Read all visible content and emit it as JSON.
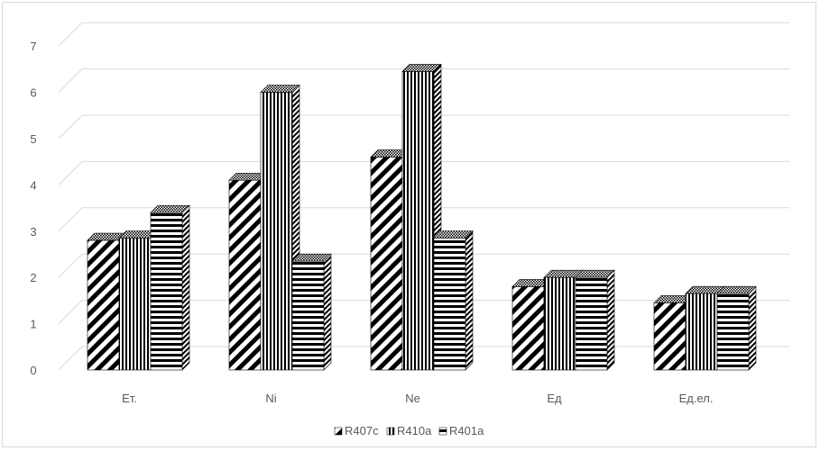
{
  "chart_data": {
    "type": "bar",
    "style": "3d-clustered-column",
    "categories": [
      "Ет.",
      "Ni",
      "Ne",
      "Ед",
      "Ед.ел."
    ],
    "series": [
      {
        "name": "R407c",
        "values": [
          2.8,
          4.1,
          4.6,
          1.8,
          1.45
        ],
        "pattern": "diagonal-stripes"
      },
      {
        "name": "R410a",
        "values": [
          2.85,
          6.0,
          6.45,
          2.0,
          1.65
        ],
        "pattern": "vertical-stripes"
      },
      {
        "name": "R401a",
        "values": [
          3.4,
          2.35,
          2.85,
          2.0,
          1.65
        ],
        "pattern": "horizontal-stripes"
      }
    ],
    "y_ticks": [
      "0",
      "1",
      "2",
      "3",
      "4",
      "5",
      "6",
      "7"
    ],
    "ylim": [
      0,
      7
    ],
    "grid": true,
    "legend_position": "bottom",
    "colors": {
      "ink": "#000000",
      "grid": "#d9d9d9",
      "text": "#595959",
      "background": "#ffffff"
    }
  }
}
